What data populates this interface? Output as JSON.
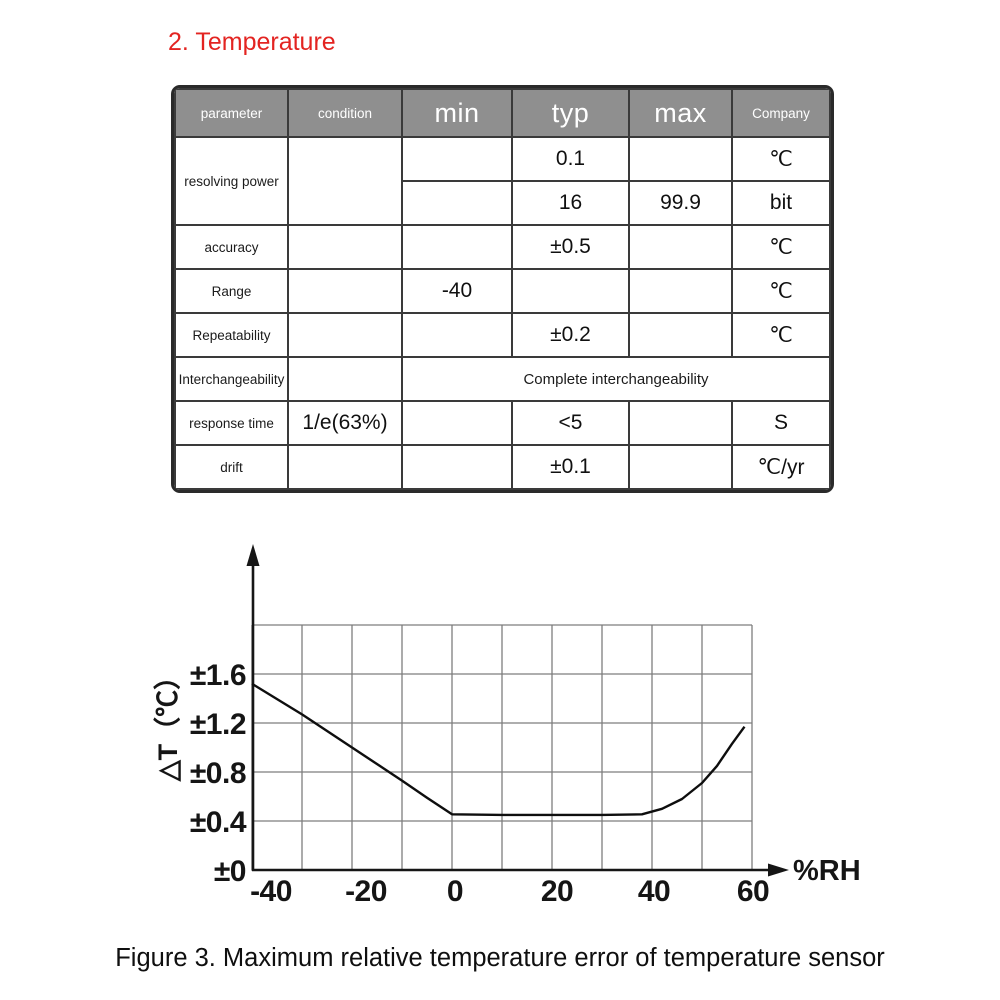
{
  "colors": {
    "title_red": "#e32421",
    "header_gray": "#8f8f8f"
  },
  "section_title": "2. Temperature",
  "figure_caption": "Figure 3. Maximum relative temperature error of temperature sensor",
  "table": {
    "headers": {
      "parameter": "parameter",
      "condition": "condition",
      "min": "min",
      "typ": "typ",
      "max": "max",
      "company": "Company"
    },
    "resolving_power": {
      "label": "resolving power",
      "row1": {
        "typ": "0.1",
        "company": "℃"
      },
      "row2": {
        "typ": "16",
        "max": "99.9",
        "company": "bit"
      }
    },
    "accuracy": {
      "label": "accuracy",
      "typ": "±0.5",
      "company": "℃"
    },
    "range": {
      "label": "Range",
      "min": "-40",
      "company": "℃"
    },
    "repeatability": {
      "label": "Repeatability",
      "typ": "±0.2",
      "company": "℃"
    },
    "interchangeability": {
      "label": "Interchangeability",
      "value": "Complete interchangeability"
    },
    "response_time": {
      "label": "response time",
      "condition": "1/e(63%)",
      "typ": "<5",
      "company": "S"
    },
    "drift": {
      "label": "drift",
      "typ": "±0.1",
      "company": "℃/yr"
    }
  },
  "chart_data": {
    "type": "line",
    "title": "Maximum relative temperature error of temperature sensor",
    "xlabel": "%RH",
    "ylabel": "△T（℃）",
    "xlim": [
      -40,
      60
    ],
    "ylim": [
      0,
      2
    ],
    "grid": true,
    "legend": "none",
    "x_ticks": [
      "-40",
      "-20",
      "0",
      "20",
      "40",
      "60"
    ],
    "y_ticks": [
      "±1.6",
      "±1.2",
      "±0.8",
      "±0.4",
      "±0"
    ],
    "series": [
      {
        "name": "maximum relative temperature error",
        "x": [
          -40,
          -30,
          -20,
          -10,
          -5,
          0,
          10,
          20,
          30,
          38,
          42,
          46,
          50,
          53,
          56,
          58.5
        ],
        "y": [
          1.52,
          1.27,
          1.0,
          0.73,
          0.59,
          0.455,
          0.45,
          0.45,
          0.45,
          0.455,
          0.5,
          0.58,
          0.71,
          0.85,
          1.03,
          1.17
        ]
      }
    ]
  }
}
